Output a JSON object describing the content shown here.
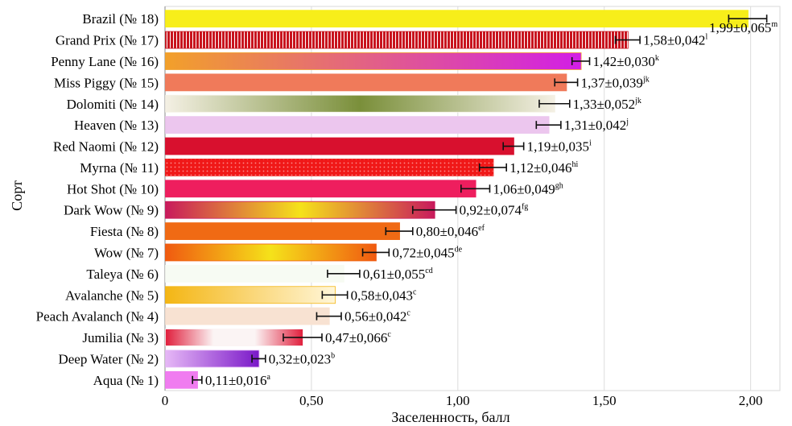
{
  "chart_data": {
    "type": "bar",
    "orientation": "horizontal",
    "title": "",
    "xlabel": "Заселенность, балл",
    "ylabel": "Сорт",
    "xlim": [
      0,
      2.1
    ],
    "ticks": [
      0,
      0.5,
      1.0,
      1.5,
      2.0
    ],
    "tick_labels": [
      "0",
      "0,50",
      "1,00",
      "1,50",
      "2,00"
    ],
    "grid": "vertical",
    "categories": [
      {
        "label": "Brazil (№ 18)",
        "value": 1.99,
        "error": 0.065,
        "value_label": "1,99±0,065",
        "letter": "m",
        "fill": "#f7ee1a",
        "fill2": "#f7ee1a",
        "pattern": "solid"
      },
      {
        "label": "Grand Prix (№ 17)",
        "value": 1.58,
        "error": 0.042,
        "value_label": "1,58±0,042",
        "letter": "l",
        "fill": "#c8141e",
        "fill2": "#ffffff",
        "pattern": "stripes"
      },
      {
        "label": "Penny Lane (№ 16)",
        "value": 1.42,
        "error": 0.03,
        "value_label": "1,42±0,030",
        "letter": "k",
        "fill": "#f2a02a",
        "fill2": "#d21ee6",
        "pattern": "gradient"
      },
      {
        "label": "Miss Piggy (№ 15)",
        "value": 1.37,
        "error": 0.039,
        "value_label": "1,37±0,039",
        "letter": "jk",
        "fill": "#f07a5a",
        "fill2": "#f07a5a",
        "pattern": "solid"
      },
      {
        "label": "Dolomiti (№ 14)",
        "value": 1.33,
        "error": 0.052,
        "value_label": "1,33±0,052",
        "letter": "jk",
        "fill": "#f4f0e4",
        "fill2": "#7a8f3a",
        "pattern": "center"
      },
      {
        "label": "Heaven (№ 13)",
        "value": 1.31,
        "error": 0.042,
        "value_label": "1,31±0,042",
        "letter": "j",
        "fill": "#ecc6ee",
        "fill2": "#ecc6ee",
        "pattern": "solid"
      },
      {
        "label": "Red Naomi (№ 12)",
        "value": 1.19,
        "error": 0.035,
        "value_label": "1,19±0,035",
        "letter": "i",
        "fill": "#d8102e",
        "fill2": "#d8102e",
        "pattern": "solid"
      },
      {
        "label": "Myrna (№ 11)",
        "value": 1.12,
        "error": 0.046,
        "value_label": "1,12±0,046",
        "letter": "hi",
        "fill": "#f01818",
        "fill2": "#ff9090",
        "pattern": "dots"
      },
      {
        "label": "Hot Shot (№ 10)",
        "value": 1.06,
        "error": 0.049,
        "value_label": "1,06±0,049",
        "letter": "gh",
        "fill": "#ee1e5e",
        "fill2": "#ee1e5e",
        "pattern": "solid"
      },
      {
        "label": "Dark Wow (№ 9)",
        "value": 0.92,
        "error": 0.074,
        "value_label": "0,92±0,074",
        "letter": "fg",
        "fill": "#c81a5c",
        "fill2": "#f5e21a",
        "pattern": "center"
      },
      {
        "label": "Fiesta (№ 8)",
        "value": 0.8,
        "error": 0.046,
        "value_label": "0,80±0,046",
        "letter": "ef",
        "fill": "#f06a14",
        "fill2": "#f06a14",
        "pattern": "solid"
      },
      {
        "label": "Wow (№ 7)",
        "value": 0.72,
        "error": 0.045,
        "value_label": "0,72±0,045",
        "letter": "de",
        "fill": "#f05a10",
        "fill2": "#f5e21a",
        "pattern": "center"
      },
      {
        "label": "Taleya (№ 6)",
        "value": 0.61,
        "error": 0.055,
        "value_label": "0,61±0,055",
        "letter": "cd",
        "fill": "#f7fbf3",
        "fill2": "#f7fbf3",
        "pattern": "solid"
      },
      {
        "label": "Avalanche (№ 5)",
        "value": 0.58,
        "error": 0.043,
        "value_label": "0,58±0,043",
        "letter": "c",
        "fill": "#f4b614",
        "fill2": "#fff6d8",
        "pattern": "gradient"
      },
      {
        "label": "Peach Avalanch (№ 4)",
        "value": 0.56,
        "error": 0.042,
        "value_label": "0,56±0,042",
        "letter": "c",
        "fill": "#f8e2d2",
        "fill2": "#f8e2d2",
        "pattern": "solid"
      },
      {
        "label": "Jumilia (№ 3)",
        "value": 0.47,
        "error": 0.066,
        "value_label": "0,47±0,066",
        "letter": "c",
        "fill": "#fbf4f4",
        "fill2": "#e01e3c",
        "pattern": "edges"
      },
      {
        "label": "Deep Water (№ 2)",
        "value": 0.32,
        "error": 0.023,
        "value_label": "0,32±0,023",
        "letter": "b",
        "fill": "#e6b8f6",
        "fill2": "#7a18c8",
        "pattern": "gradient"
      },
      {
        "label": "Aqua (№ 1)",
        "value": 0.11,
        "error": 0.016,
        "value_label": "0,11±0,016",
        "letter": "a",
        "fill": "#f07cf0",
        "fill2": "#f07cf0",
        "pattern": "solid"
      }
    ]
  }
}
